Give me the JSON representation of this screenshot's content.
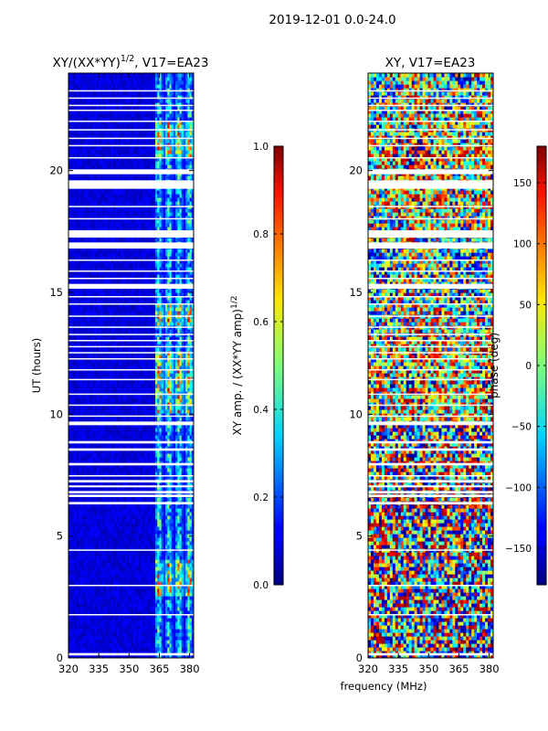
{
  "chart_data": [
    {
      "type": "heatmap",
      "figure_title": "2019-12-01 0.0-24.0",
      "title": "XY/(XX*YY)^{1/2}, V17=EA23",
      "title_main": "XY/(XX*YY)",
      "title_sup": "1/2",
      "title_suffix": ", V17=EA23",
      "xlabel": "",
      "ylabel": "UT (hours)",
      "xlim": [
        320,
        382
      ],
      "ylim": [
        0,
        24
      ],
      "xticks": [
        320,
        335,
        350,
        365,
        380
      ],
      "yticks": [
        0,
        5,
        10,
        15,
        20
      ],
      "colormap": "jet",
      "colorbar": {
        "label": "XY amp. / (XX*YY amp)^{1/2}",
        "label_main": "XY amp. / (XX*YY amp)",
        "label_sup": "1/2",
        "range": [
          0.0,
          1.0
        ],
        "ticks": [
          "0.0",
          "0.2",
          "0.4",
          "0.6",
          "0.8",
          "1.0"
        ]
      },
      "description": "Normalized cross-hand amplitude, mostly low (~0.05) below 363 MHz; bright striped columns (0.3-0.9) between 363-382 MHz; white horizontal gaps indicate flagged times."
    },
    {
      "type": "heatmap",
      "title": "XY, V17=EA23",
      "xlabel": "frequency (MHz)",
      "ylabel": "",
      "xlim": [
        320,
        382
      ],
      "ylim": [
        0,
        24
      ],
      "xticks": [
        320,
        335,
        350,
        365,
        380
      ],
      "yticks": [
        0,
        5,
        10,
        15,
        20
      ],
      "colormap": "jet",
      "colorbar": {
        "label": "phase (deg)",
        "range": [
          -180,
          180
        ],
        "ticks": [
          "−150",
          "−100",
          "−50",
          "0",
          "50",
          "100",
          "150"
        ]
      },
      "description": "Cross-hand phase, noisy wrapping between -180 and 180 degrees with flagged time gaps."
    }
  ],
  "flagged_hours": [
    [
      0.1,
      0.2
    ],
    [
      1.75,
      1.8
    ],
    [
      2.95,
      3.0
    ],
    [
      4.4,
      4.45
    ],
    [
      6.3,
      6.4
    ],
    [
      6.6,
      6.7
    ],
    [
      6.75,
      6.85
    ],
    [
      7.0,
      7.08
    ],
    [
      7.2,
      7.3
    ],
    [
      7.45,
      7.5
    ],
    [
      7.9,
      8.0
    ],
    [
      8.5,
      8.6
    ],
    [
      8.8,
      8.9
    ],
    [
      9.55,
      9.7
    ],
    [
      9.9,
      9.95
    ],
    [
      10.35,
      10.4
    ],
    [
      10.8,
      10.85
    ],
    [
      11.4,
      11.45
    ],
    [
      11.8,
      11.85
    ],
    [
      12.25,
      12.3
    ],
    [
      12.5,
      12.55
    ],
    [
      12.75,
      12.8
    ],
    [
      13.0,
      13.05
    ],
    [
      13.25,
      13.3
    ],
    [
      13.55,
      13.6
    ],
    [
      14.0,
      14.05
    ],
    [
      14.5,
      14.55
    ],
    [
      14.8,
      14.85
    ],
    [
      15.15,
      15.35
    ],
    [
      15.55,
      15.6
    ],
    [
      15.85,
      15.9
    ],
    [
      16.3,
      16.35
    ],
    [
      16.8,
      17.05
    ],
    [
      17.25,
      17.55
    ],
    [
      18.0,
      18.05
    ],
    [
      18.5,
      18.55
    ],
    [
      19.25,
      19.6
    ],
    [
      19.85,
      20.05
    ],
    [
      20.5,
      20.55
    ],
    [
      21.0,
      21.05
    ],
    [
      21.3,
      21.35
    ],
    [
      21.65,
      21.7
    ],
    [
      22.0,
      22.05
    ],
    [
      22.45,
      22.5
    ],
    [
      22.65,
      22.7
    ],
    [
      22.95,
      23.0
    ],
    [
      23.25,
      23.3
    ]
  ]
}
